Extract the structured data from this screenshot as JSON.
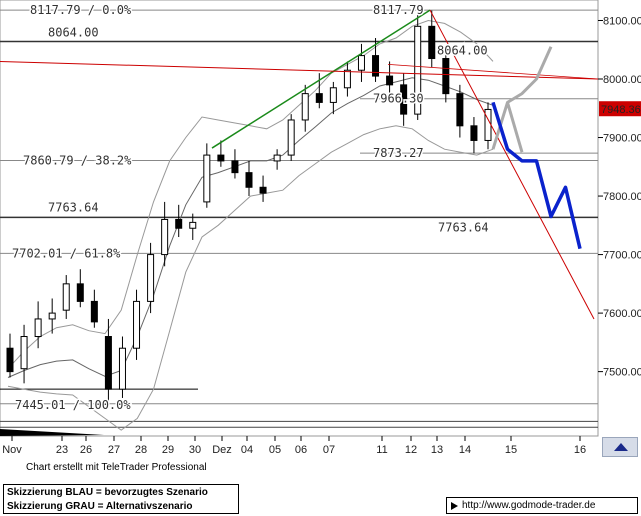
{
  "chart_data": {
    "type": "candlestick",
    "y_range": [
      7390,
      8135
    ],
    "x_labels": [
      "Nov",
      "23",
      "26",
      "27",
      "28",
      "29",
      "30",
      "Dez",
      "04",
      "05",
      "06",
      "07",
      "11",
      "12",
      "13",
      "14",
      "15",
      "16"
    ],
    "y_ticks": [
      7500,
      7600,
      7700,
      7800,
      7900,
      8000,
      8100
    ],
    "y_tick_labels": [
      "7500.00",
      "7600.00",
      "7700.00",
      "7800.00",
      "7900.00",
      "8000.00",
      "8100.00"
    ],
    "last_price": "7948.36",
    "fib_levels": [
      {
        "label": "8117.79 / 0.0%",
        "value": 8117.79
      },
      {
        "label": "7860.79 / 38.2%",
        "value": 7860.79
      },
      {
        "label": "7702.01 / 61.8%",
        "value": 7702.01
      },
      {
        "label": "7445.01 / 100.0%",
        "value": 7445.01
      }
    ],
    "level_labels": [
      {
        "label": "8064.00",
        "value": 8064.0
      },
      {
        "label": "8064.00",
        "value": 8064.0
      },
      {
        "label": "7966.30",
        "value": 7966.3
      },
      {
        "label": "7873.27",
        "value": 7873.27
      },
      {
        "label": "7763.64",
        "value": 7763.64
      },
      {
        "label": "7763.64",
        "value": 7763.64
      },
      {
        "label": "8117.79",
        "value": 8117.79
      }
    ],
    "bollinger_upper": [
      7505,
      7535,
      7560,
      7575,
      7580,
      7570,
      7565,
      7605,
      7700,
      7790,
      7860,
      7900,
      7935,
      7930,
      7925,
      7920,
      7915,
      7930,
      7955,
      7980,
      8010,
      8025,
      8040,
      8060,
      8070,
      8090,
      8100,
      8095,
      8080,
      8060,
      8030
    ],
    "bollinger_lower": [
      7475,
      7470,
      7465,
      7462,
      7460,
      7440,
      7420,
      7400,
      7420,
      7470,
      7570,
      7670,
      7730,
      7750,
      7775,
      7800,
      7805,
      7810,
      7835,
      7855,
      7875,
      7890,
      7905,
      7915,
      7920,
      7915,
      7895,
      7880,
      7875,
      7870,
      7880
    ],
    "bollinger_mid": [
      7490,
      7502,
      7512,
      7518,
      7520,
      7505,
      7492,
      7502,
      7560,
      7630,
      7715,
      7785,
      7832,
      7840,
      7850,
      7860,
      7860,
      7870,
      7895,
      7918,
      7942,
      7958,
      7972,
      7988,
      7995,
      8002,
      7998,
      7988,
      7978,
      7965,
      7955
    ],
    "candles": [
      {
        "o": 7540,
        "h": 7565,
        "l": 7490,
        "c": 7500
      },
      {
        "o": 7505,
        "h": 7580,
        "l": 7480,
        "c": 7560
      },
      {
        "o": 7560,
        "h": 7620,
        "l": 7540,
        "c": 7590
      },
      {
        "o": 7590,
        "h": 7625,
        "l": 7565,
        "c": 7600
      },
      {
        "o": 7605,
        "h": 7665,
        "l": 7590,
        "c": 7650
      },
      {
        "o": 7650,
        "h": 7675,
        "l": 7610,
        "c": 7620
      },
      {
        "o": 7620,
        "h": 7640,
        "l": 7575,
        "c": 7585
      },
      {
        "o": 7560,
        "h": 7590,
        "l": 7450,
        "c": 7470
      },
      {
        "o": 7470,
        "h": 7560,
        "l": 7455,
        "c": 7540
      },
      {
        "o": 7540,
        "h": 7640,
        "l": 7520,
        "c": 7620
      },
      {
        "o": 7620,
        "h": 7720,
        "l": 7600,
        "c": 7700
      },
      {
        "o": 7700,
        "h": 7790,
        "l": 7680,
        "c": 7760
      },
      {
        "o": 7760,
        "h": 7785,
        "l": 7730,
        "c": 7745
      },
      {
        "o": 7745,
        "h": 7770,
        "l": 7725,
        "c": 7755
      },
      {
        "o": 7790,
        "h": 7890,
        "l": 7780,
        "c": 7870
      },
      {
        "o": 7870,
        "h": 7895,
        "l": 7850,
        "c": 7860
      },
      {
        "o": 7860,
        "h": 7880,
        "l": 7830,
        "c": 7840
      },
      {
        "o": 7840,
        "h": 7860,
        "l": 7800,
        "c": 7815
      },
      {
        "o": 7815,
        "h": 7835,
        "l": 7790,
        "c": 7805
      },
      {
        "o": 7860,
        "h": 7880,
        "l": 7845,
        "c": 7870
      },
      {
        "o": 7870,
        "h": 7940,
        "l": 7860,
        "c": 7930
      },
      {
        "o": 7930,
        "h": 7990,
        "l": 7910,
        "c": 7975
      },
      {
        "o": 7975,
        "h": 8010,
        "l": 7950,
        "c": 7960
      },
      {
        "o": 7960,
        "h": 7995,
        "l": 7940,
        "c": 7985
      },
      {
        "o": 7985,
        "h": 8030,
        "l": 7970,
        "c": 8015
      },
      {
        "o": 8015,
        "h": 8060,
        "l": 7995,
        "c": 8040
      },
      {
        "o": 8040,
        "h": 8070,
        "l": 7995,
        "c": 8005
      },
      {
        "o": 8005,
        "h": 8030,
        "l": 7970,
        "c": 7990
      },
      {
        "o": 7990,
        "h": 8010,
        "l": 7920,
        "c": 7940
      },
      {
        "o": 7940,
        "h": 8115,
        "l": 7930,
        "c": 8090
      },
      {
        "o": 8090,
        "h": 8117,
        "l": 8020,
        "c": 8035
      },
      {
        "o": 8035,
        "h": 8050,
        "l": 7960,
        "c": 7975
      },
      {
        "o": 7975,
        "h": 7990,
        "l": 7900,
        "c": 7920
      },
      {
        "o": 7920,
        "h": 7935,
        "l": 7873,
        "c": 7895
      },
      {
        "o": 7895,
        "h": 7960,
        "l": 7880,
        "c": 7948
      }
    ],
    "scenario_blue": [
      [
        8,
        7960
      ],
      [
        9,
        7880
      ],
      [
        10,
        7860
      ],
      [
        11,
        7860
      ],
      [
        12,
        7765
      ],
      [
        13,
        7815
      ],
      [
        14,
        7710
      ]
    ],
    "scenario_gray": [
      [
        8,
        7880
      ],
      [
        9,
        7960
      ],
      [
        10,
        7975
      ],
      [
        11,
        8000
      ],
      [
        12,
        8055
      ]
    ],
    "scenario_gray_2": [
      [
        9,
        7960
      ],
      [
        10,
        7875
      ]
    ]
  },
  "footer": {
    "credit": "Chart erstellt mit TeleTrader Professional",
    "legend_blue": "Skizzierung BLAU = bevorzugtes Szenario",
    "legend_gray": "Skizzierung GRAU = Alternativszenario",
    "url": "http://www.godmode-trader.de"
  },
  "colors": {
    "trend_up": "#1a8a1a",
    "resistance": "#cc0000",
    "scenario_blue": "#0a22cc",
    "scenario_gray": "#aaaaaa",
    "price_box": "#cc0000"
  }
}
